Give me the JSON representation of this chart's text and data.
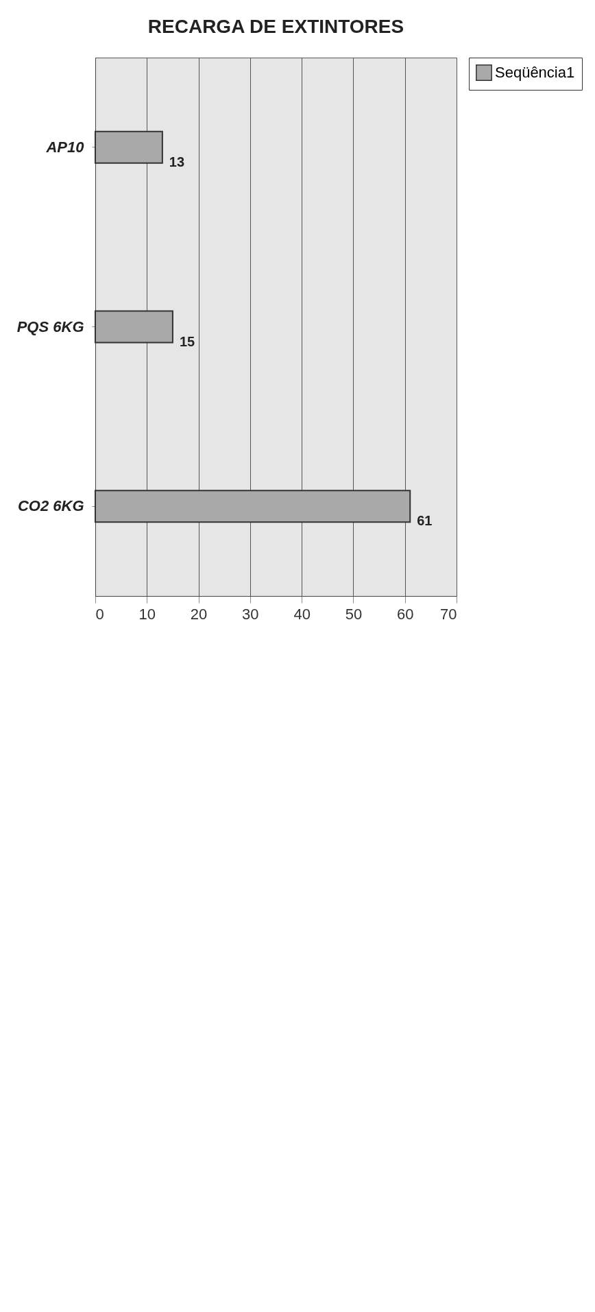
{
  "chart_data": {
    "type": "bar",
    "orientation": "horizontal",
    "title": "RECARGA DE EXTINTORES",
    "categories": [
      "AP10",
      "PQS  6KG",
      "CO2 6KG"
    ],
    "series": [
      {
        "name": "Seqüência1",
        "color": "#a9a9a9",
        "values": [
          13,
          15,
          61
        ]
      }
    ],
    "xlim": [
      0,
      70
    ],
    "xticks": [
      0,
      10,
      20,
      30,
      40,
      50,
      60,
      70
    ],
    "grid": "x",
    "legend": "right",
    "data_labels": true
  }
}
